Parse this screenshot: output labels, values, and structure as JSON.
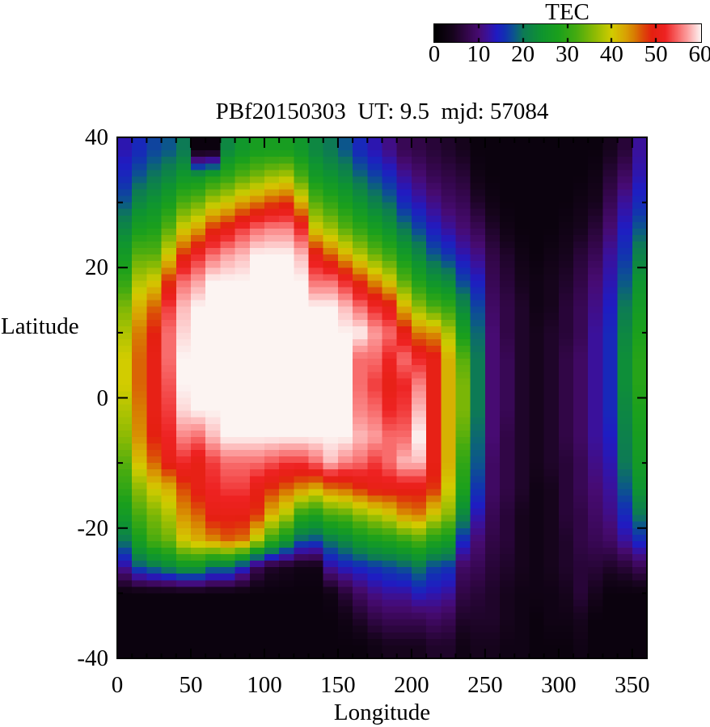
{
  "colorbar": {
    "title": "TEC",
    "min": 0,
    "max": 60,
    "tick_values": [
      0,
      10,
      20,
      30,
      40,
      50,
      60
    ],
    "tick_labels": [
      "0",
      "10",
      "20",
      "30",
      "40",
      "50",
      "60"
    ]
  },
  "plot": {
    "title": "PBf20150303  UT: 9.5  mjd: 57084",
    "xlabel": "Longitude",
    "ylabel": "Latitude",
    "x_ticks": {
      "values": [
        0,
        50,
        100,
        150,
        200,
        250,
        300,
        350
      ],
      "labels": [
        "0",
        "50",
        "100",
        "150",
        "200",
        "250",
        "300",
        "350"
      ],
      "minor_step": 10,
      "range": [
        0,
        360
      ]
    },
    "y_ticks": {
      "values": [
        40,
        20,
        0,
        -20,
        -40
      ],
      "labels": [
        "40",
        "20",
        "0",
        "-20",
        "-40"
      ],
      "minor_step": 10,
      "range": [
        -40,
        40
      ]
    }
  },
  "chart_data": {
    "type": "heatmap",
    "title": "PBf20150303  UT: 9.5  mjd: 57084",
    "xlabel": "Longitude",
    "ylabel": "Latitude",
    "zlabel": "TEC",
    "xlim": [
      0,
      360
    ],
    "ylim": [
      -40,
      40
    ],
    "zlim": [
      0,
      60
    ],
    "lon_col_edges_deg": "36 columns, 10 deg each, 0 to 360",
    "lat_row_centers_deg": [
      38,
      34,
      30,
      26,
      22,
      18,
      14,
      10,
      6,
      2,
      -2,
      -6,
      -10,
      -14,
      -18,
      -22,
      -26,
      -30,
      -34,
      -38
    ],
    "values": [
      [
        13,
        15,
        17,
        18,
        20,
        2,
        2,
        22,
        25,
        27,
        27,
        27,
        25,
        22,
        20,
        18,
        15,
        13,
        11,
        8,
        7,
        6,
        5,
        4,
        2,
        2,
        2,
        2,
        2,
        2,
        2,
        2,
        2,
        4,
        6,
        12
      ],
      [
        15,
        18,
        20,
        22,
        25,
        25,
        28,
        30,
        33,
        35,
        37,
        38,
        32,
        26,
        24,
        22,
        19,
        17,
        15,
        12,
        10,
        8,
        7,
        6,
        3,
        2,
        2,
        2,
        2,
        2,
        2,
        2,
        3,
        6,
        9,
        13
      ],
      [
        18,
        22,
        24,
        27,
        32,
        34,
        38,
        40,
        43,
        45,
        47,
        48,
        42,
        33,
        30,
        27,
        24,
        21,
        19,
        15,
        13,
        11,
        9,
        8,
        5,
        3,
        2,
        2,
        2,
        2,
        2,
        3,
        4,
        8,
        12,
        15
      ],
      [
        22,
        27,
        28,
        33,
        40,
        43,
        48,
        50,
        53,
        55,
        56,
        56,
        52,
        40,
        37,
        33,
        30,
        27,
        24,
        20,
        17,
        14,
        12,
        10,
        8,
        5,
        3,
        2,
        2,
        2,
        3,
        4,
        6,
        10,
        14,
        18
      ],
      [
        26,
        33,
        33,
        40,
        48,
        52,
        55,
        57,
        58,
        60,
        60,
        60,
        58,
        50,
        46,
        42,
        38,
        34,
        31,
        26,
        22,
        18,
        16,
        13,
        11,
        7,
        5,
        3,
        2,
        3,
        4,
        6,
        8,
        12,
        16,
        21
      ],
      [
        30,
        38,
        40,
        48,
        55,
        57,
        60,
        60,
        60,
        60,
        60,
        60,
        60,
        55,
        55,
        52,
        48,
        44,
        40,
        33,
        28,
        24,
        22,
        17,
        14,
        8,
        6,
        4,
        3,
        4,
        5,
        7,
        10,
        13,
        18,
        24
      ],
      [
        35,
        42,
        46,
        53,
        58,
        60,
        60,
        60,
        60,
        60,
        60,
        60,
        60,
        60,
        60,
        58,
        55,
        52,
        50,
        42,
        36,
        32,
        30,
        22,
        17,
        9,
        7,
        5,
        3,
        4,
        6,
        8,
        11,
        14,
        20,
        26
      ],
      [
        38,
        45,
        49,
        55,
        59,
        60,
        60,
        60,
        60,
        60,
        60,
        60,
        60,
        60,
        60,
        60,
        60,
        57,
        55,
        50,
        45,
        44,
        38,
        27,
        19,
        10,
        7,
        5,
        4,
        5,
        6,
        8,
        12,
        15,
        22,
        28
      ],
      [
        40,
        46,
        50,
        55,
        60,
        60,
        60,
        60,
        60,
        60,
        60,
        60,
        60,
        60,
        60,
        60,
        55,
        55,
        52,
        55,
        52,
        50,
        42,
        33,
        20,
        10,
        8,
        5,
        4,
        5,
        7,
        9,
        12,
        15,
        23,
        29
      ],
      [
        40,
        46,
        50,
        54,
        60,
        60,
        60,
        60,
        60,
        60,
        60,
        60,
        60,
        60,
        60,
        60,
        55,
        53,
        50,
        52,
        56,
        50,
        42,
        35,
        20,
        10,
        8,
        5,
        4,
        5,
        7,
        9,
        12,
        15,
        23,
        29
      ],
      [
        38,
        45,
        50,
        53,
        59,
        60,
        60,
        60,
        60,
        60,
        60,
        60,
        60,
        60,
        60,
        60,
        56,
        55,
        52,
        53,
        58,
        50,
        42,
        35,
        20,
        10,
        8,
        5,
        4,
        5,
        7,
        9,
        12,
        15,
        22,
        28
      ],
      [
        36,
        44,
        49,
        52,
        56,
        55,
        58,
        60,
        60,
        60,
        60,
        60,
        60,
        60,
        60,
        60,
        58,
        57,
        55,
        55,
        60,
        50,
        42,
        33,
        19,
        10,
        7,
        5,
        4,
        5,
        7,
        9,
        12,
        14,
        21,
        27
      ],
      [
        33,
        41,
        46,
        50,
        52,
        50,
        53,
        55,
        55,
        55,
        54,
        53,
        53,
        55,
        58,
        56,
        55,
        53,
        55,
        58,
        58,
        50,
        42,
        30,
        18,
        9,
        7,
        5,
        4,
        5,
        6,
        8,
        11,
        13,
        20,
        26
      ],
      [
        30,
        36,
        40,
        42,
        47,
        50,
        52,
        53,
        53,
        50,
        48,
        46,
        44,
        42,
        45,
        46,
        48,
        50,
        50,
        50,
        50,
        48,
        40,
        28,
        16,
        9,
        7,
        5,
        3,
        4,
        6,
        8,
        10,
        12,
        18,
        24
      ],
      [
        26,
        32,
        35,
        38,
        44,
        46,
        50,
        50,
        50,
        48,
        42,
        38,
        30,
        28,
        32,
        33,
        36,
        38,
        40,
        44,
        45,
        40,
        36,
        22,
        13,
        8,
        6,
        4,
        3,
        4,
        6,
        7,
        9,
        11,
        15,
        20
      ],
      [
        20,
        27,
        32,
        34,
        40,
        42,
        44,
        46,
        45,
        38,
        30,
        25,
        18,
        17,
        20,
        22,
        25,
        27,
        28,
        30,
        32,
        28,
        26,
        15,
        10,
        7,
        6,
        4,
        3,
        4,
        5,
        7,
        8,
        9,
        12,
        15
      ],
      [
        12,
        18,
        20,
        22,
        25,
        25,
        20,
        20,
        15,
        8,
        5,
        4,
        3,
        3,
        12,
        14,
        15,
        16,
        17,
        18,
        20,
        17,
        16,
        9,
        8,
        6,
        5,
        4,
        3,
        4,
        5,
        6,
        6,
        5,
        6,
        8
      ],
      [
        2,
        2,
        2,
        2,
        2,
        2,
        2,
        2,
        2,
        2,
        2,
        2,
        2,
        2,
        3,
        6,
        9,
        11,
        12,
        12,
        14,
        13,
        12,
        7,
        6,
        5,
        4,
        3,
        3,
        3,
        4,
        6,
        4,
        2,
        2,
        2
      ],
      [
        2,
        2,
        2,
        2,
        2,
        2,
        2,
        2,
        2,
        2,
        2,
        2,
        2,
        2,
        2,
        3,
        5,
        7,
        8,
        8,
        8,
        9,
        8,
        5,
        5,
        5,
        4,
        3,
        2,
        3,
        3,
        4,
        2,
        2,
        2,
        2
      ],
      [
        2,
        2,
        2,
        2,
        2,
        2,
        2,
        2,
        2,
        2,
        2,
        2,
        2,
        2,
        2,
        2,
        2,
        3,
        4,
        4,
        4,
        5,
        5,
        3,
        4,
        4,
        3,
        3,
        2,
        2,
        2,
        3,
        2,
        2,
        2,
        2
      ]
    ],
    "palette": [
      [
        0,
        "#000000"
      ],
      [
        4,
        "#16041c"
      ],
      [
        7,
        "#310646"
      ],
      [
        10,
        "#470b72"
      ],
      [
        12,
        "#3a119b"
      ],
      [
        14,
        "#1f1cc3"
      ],
      [
        16,
        "#1233b0"
      ],
      [
        18,
        "#0c568c"
      ],
      [
        20,
        "#0d7a55"
      ],
      [
        24,
        "#0e9430"
      ],
      [
        28,
        "#1ba01c"
      ],
      [
        32,
        "#46ab10"
      ],
      [
        36,
        "#8cba04"
      ],
      [
        40,
        "#d2cc00"
      ],
      [
        43,
        "#d8a303"
      ],
      [
        45,
        "#d87d02"
      ],
      [
        47,
        "#dc4a08"
      ],
      [
        49,
        "#e42010"
      ],
      [
        52,
        "#ee2222"
      ],
      [
        55,
        "#f86c6c"
      ],
      [
        57,
        "#fc9e9e"
      ],
      [
        59,
        "#fdd7d7"
      ],
      [
        60,
        "#fcf4f2"
      ]
    ],
    "legend_position": "top-right colorbar",
    "grid": false
  }
}
